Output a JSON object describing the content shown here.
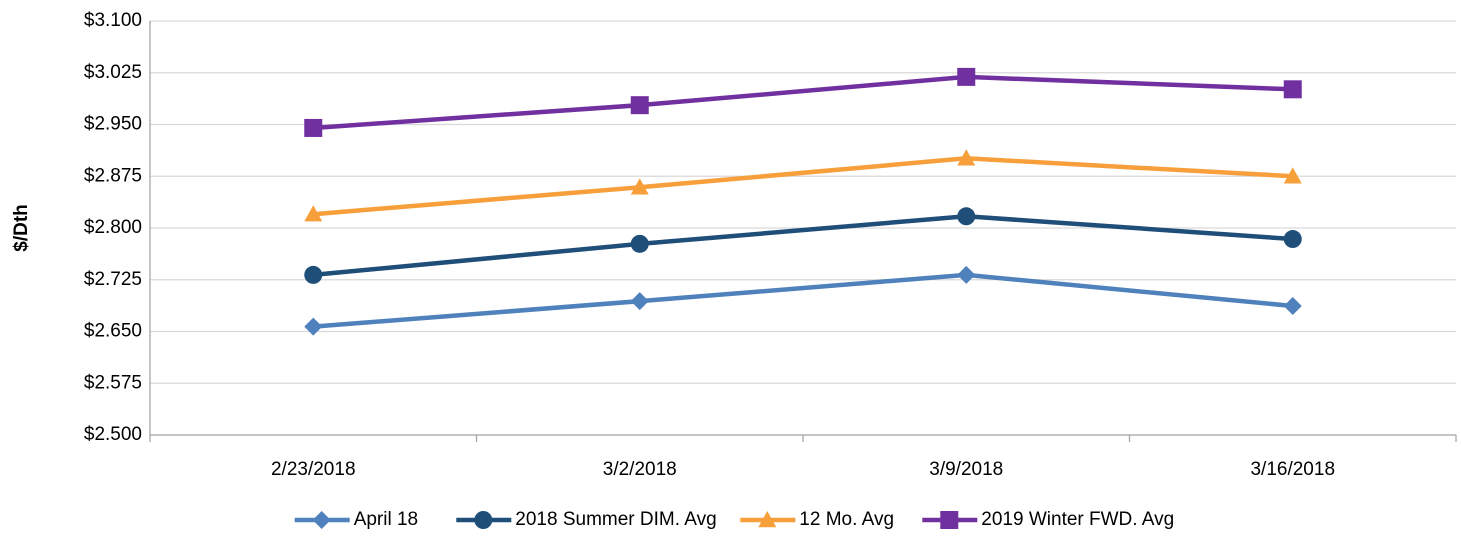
{
  "chart_data": {
    "type": "line",
    "y_label": "$/Dth",
    "categories": [
      "2/23/2018",
      "3/2/2018",
      "3/9/2018",
      "3/16/2018"
    ],
    "series": [
      {
        "name": "April 18",
        "color": "#4f81bd",
        "marker": "diamond",
        "values": [
          2.657,
          2.694,
          2.732,
          2.687
        ]
      },
      {
        "name": "2018 Summer DIM. Avg",
        "color": "#1f4e79",
        "marker": "circle",
        "values": [
          2.732,
          2.777,
          2.817,
          2.784
        ]
      },
      {
        "name": "12 Mo. Avg",
        "color": "#f79f3a",
        "marker": "triangle",
        "values": [
          2.82,
          2.859,
          2.901,
          2.875
        ]
      },
      {
        "name": "2019 Winter FWD. Avg",
        "color": "#7030a0",
        "marker": "square",
        "values": [
          2.945,
          2.978,
          3.019,
          3.001
        ]
      }
    ],
    "ylim": [
      2.5,
      3.1
    ],
    "yticks": [
      {
        "value": 2.5,
        "label": "$2.500"
      },
      {
        "value": 2.575,
        "label": "$2.575"
      },
      {
        "value": 2.65,
        "label": "$2.650"
      },
      {
        "value": 2.725,
        "label": "$2.725"
      },
      {
        "value": 2.8,
        "label": "$2.800"
      },
      {
        "value": 2.875,
        "label": "$2.875"
      },
      {
        "value": 2.95,
        "label": "$2.950"
      },
      {
        "value": 3.025,
        "label": "$3.025"
      },
      {
        "value": 3.1,
        "label": "$3.100"
      }
    ],
    "grid": true,
    "legend": "bottom"
  }
}
